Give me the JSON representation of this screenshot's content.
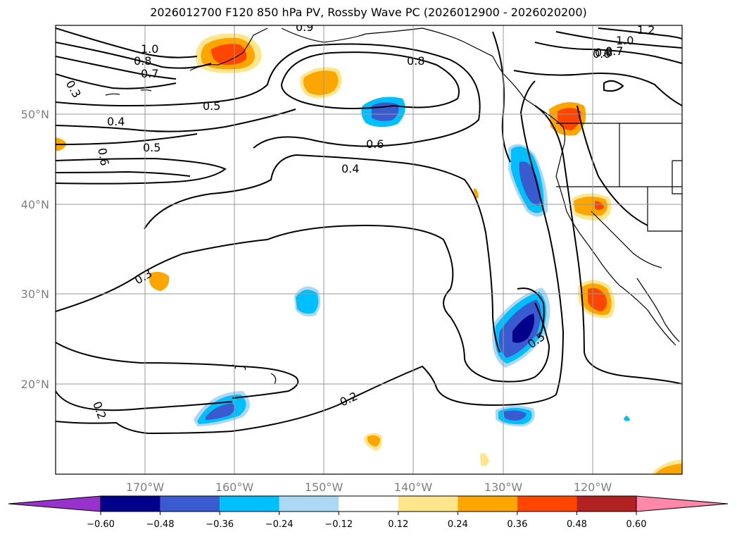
{
  "title": "2026012700 F120 850 hPa PV, Rossby Wave PC (2026012900 - 2026020200)",
  "map": {
    "lon_range": [
      -180,
      -110
    ],
    "lat_range": [
      10,
      60
    ],
    "lon_ticks": [
      "170°W",
      "160°W",
      "150°W",
      "140°W",
      "130°W",
      "120°W"
    ],
    "lat_ticks": [
      "20°N",
      "30°N",
      "40°N",
      "50°N"
    ],
    "grid": true
  },
  "contour_labels": [
    "1.2",
    "1.0",
    "0.8",
    "0.7",
    "0.6",
    "0.5",
    "0.4",
    "0.3",
    "0.2",
    "0.5",
    "0.8",
    "0.9",
    "1.0",
    "0.6",
    "0.4",
    "0.3",
    "0.2",
    "0.8",
    "0.6",
    "0.7",
    "0.5"
  ],
  "colorbar": {
    "ticks": [
      "−0.60",
      "−0.48",
      "−0.36",
      "−0.24",
      "−0.12",
      "0.12",
      "0.24",
      "0.36",
      "0.48",
      "0.60"
    ],
    "colors": [
      "#9932cc",
      "#00008b",
      "#3a5bd0",
      "#00bfff",
      "#add8f5",
      "#ffffff",
      "#ffe68c",
      "#ffa500",
      "#ff4500",
      "#b22222",
      "#ff88aa"
    ]
  },
  "icons": [
    "coastline",
    "pv-contour",
    "anomaly-blob"
  ]
}
